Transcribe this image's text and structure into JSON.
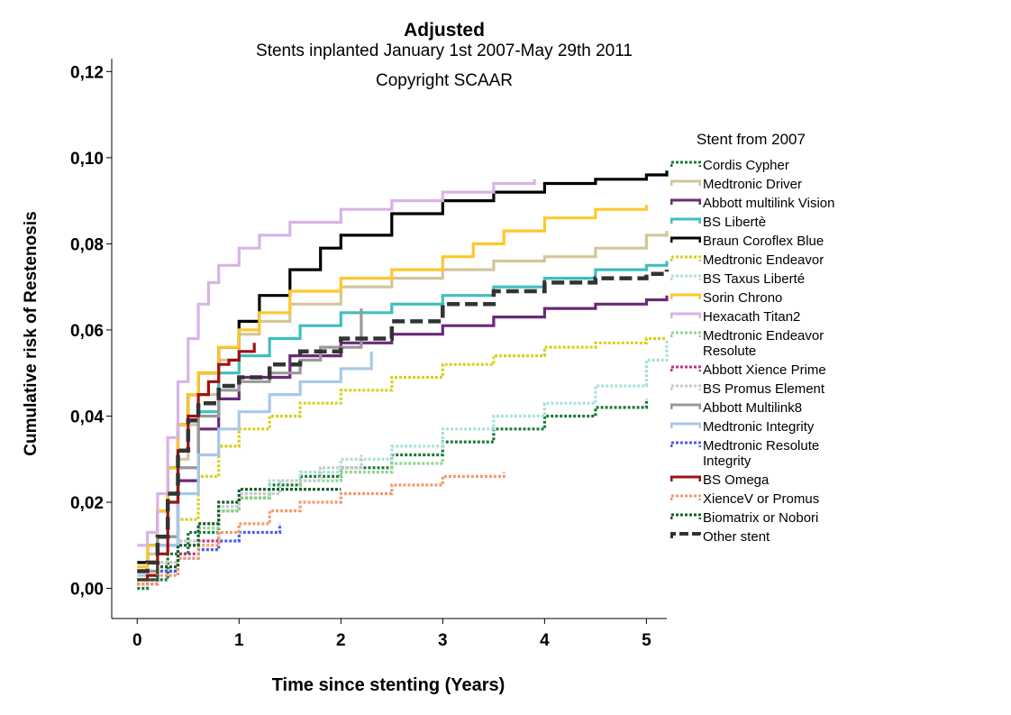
{
  "chart_data": {
    "type": "line",
    "title": "Adjusted",
    "subtitle": "Stents inplanted January 1st 2007-May 29th 2011",
    "annotation": "Copyright SCAAR",
    "xlabel": "Time since stenting (Years)",
    "ylabel": "Cumulative risk of Restenosis",
    "xlim": [
      -0.25,
      5.2
    ],
    "ylim": [
      -0.007,
      0.123
    ],
    "xticks": [
      "0",
      "1",
      "2",
      "3",
      "4",
      "5"
    ],
    "xtick_values": [
      0,
      1,
      2,
      3,
      4,
      5
    ],
    "yticks": [
      "0,00",
      "0,02",
      "0,04",
      "0,06",
      "0,08",
      "0,10",
      "0,12"
    ],
    "ytick_values": [
      0,
      0.02,
      0.04,
      0.06,
      0.08,
      0.1,
      0.12
    ],
    "grid": false,
    "legend_title": "Stent from 2007",
    "legend_position": "right",
    "series": [
      {
        "name": "Cordis Cypher",
        "color": "#1a7a3c",
        "dash": "dotted",
        "x": [
          0,
          0.1,
          0.3,
          0.5,
          0.8,
          1.0,
          1.3,
          1.6,
          2.0,
          2.5,
          3.0,
          3.5,
          4.0,
          4.5,
          5.0
        ],
        "y": [
          0,
          0.002,
          0.008,
          0.013,
          0.018,
          0.021,
          0.024,
          0.026,
          0.028,
          0.031,
          0.034,
          0.037,
          0.04,
          0.042,
          0.044
        ]
      },
      {
        "name": "Medtronic Driver",
        "color": "#d2c69a",
        "dash": "solid",
        "x": [
          0,
          0.1,
          0.2,
          0.3,
          0.4,
          0.5,
          0.6,
          0.8,
          1.0,
          1.2,
          1.5,
          2.0,
          2.5,
          3.0,
          3.5,
          4.0,
          4.5,
          5.0,
          5.2
        ],
        "y": [
          0.005,
          0.008,
          0.012,
          0.02,
          0.03,
          0.038,
          0.045,
          0.053,
          0.059,
          0.062,
          0.066,
          0.07,
          0.072,
          0.074,
          0.076,
          0.077,
          0.079,
          0.082,
          0.083
        ]
      },
      {
        "name": "Abbott multilink Vision",
        "color": "#6a2a78",
        "dash": "solid",
        "x": [
          0,
          0.2,
          0.4,
          0.6,
          0.8,
          1.0,
          1.5,
          2.0,
          2.5,
          3.0,
          3.5,
          4.0,
          4.5,
          5.0,
          5.2
        ],
        "y": [
          0.002,
          0.01,
          0.025,
          0.037,
          0.044,
          0.049,
          0.054,
          0.057,
          0.059,
          0.061,
          0.063,
          0.065,
          0.066,
          0.067,
          0.068
        ]
      },
      {
        "name": "BS Libertè",
        "color": "#3fbfbf",
        "dash": "solid",
        "x": [
          0,
          0.2,
          0.4,
          0.6,
          0.8,
          1.0,
          1.3,
          1.6,
          2.0,
          2.5,
          3.0,
          3.5,
          4.0,
          4.5,
          5.0,
          5.2
        ],
        "y": [
          0.004,
          0.012,
          0.028,
          0.041,
          0.05,
          0.054,
          0.058,
          0.061,
          0.064,
          0.066,
          0.068,
          0.07,
          0.072,
          0.074,
          0.075,
          0.076
        ]
      },
      {
        "name": "Braun Coroflex Blue",
        "color": "#000000",
        "dash": "solid",
        "x": [
          0,
          0.1,
          0.2,
          0.3,
          0.4,
          0.5,
          0.6,
          0.8,
          1.0,
          1.2,
          1.5,
          1.8,
          2.0,
          2.5,
          3.0,
          3.5,
          4.0,
          4.5,
          5.0,
          5.2
        ],
        "y": [
          0.006,
          0.01,
          0.018,
          0.028,
          0.038,
          0.045,
          0.05,
          0.056,
          0.062,
          0.068,
          0.074,
          0.079,
          0.082,
          0.087,
          0.09,
          0.092,
          0.094,
          0.095,
          0.096,
          0.097
        ]
      },
      {
        "name": "Medtronic Endeavor",
        "color": "#d6d01a",
        "dash": "dotted",
        "x": [
          0,
          0.2,
          0.4,
          0.6,
          0.8,
          1.0,
          1.3,
          1.6,
          2.0,
          2.5,
          3.0,
          3.5,
          4.0,
          4.5,
          5.0,
          5.2
        ],
        "y": [
          0.001,
          0.006,
          0.016,
          0.026,
          0.033,
          0.037,
          0.04,
          0.043,
          0.046,
          0.049,
          0.052,
          0.054,
          0.056,
          0.057,
          0.058,
          0.058
        ]
      },
      {
        "name": "BS Taxus Liberté",
        "color": "#a8e0dc",
        "dash": "dotted",
        "x": [
          0,
          0.2,
          0.4,
          0.6,
          0.8,
          1.0,
          1.3,
          1.6,
          2.0,
          2.5,
          3.0,
          3.5,
          4.0,
          4.5,
          5.0,
          5.2
        ],
        "y": [
          0.002,
          0.006,
          0.011,
          0.015,
          0.019,
          0.022,
          0.025,
          0.027,
          0.03,
          0.033,
          0.037,
          0.04,
          0.043,
          0.047,
          0.053,
          0.058
        ]
      },
      {
        "name": "Sorin Chrono",
        "color": "#ffc72c",
        "dash": "solid",
        "x": [
          0,
          0.1,
          0.2,
          0.3,
          0.4,
          0.5,
          0.6,
          0.8,
          1.0,
          1.2,
          1.5,
          2.0,
          2.5,
          3.0,
          3.3,
          3.6,
          4.0,
          4.5,
          5.0
        ],
        "y": [
          0.005,
          0.01,
          0.018,
          0.028,
          0.038,
          0.045,
          0.05,
          0.056,
          0.06,
          0.064,
          0.069,
          0.072,
          0.074,
          0.077,
          0.08,
          0.083,
          0.086,
          0.088,
          0.089
        ]
      },
      {
        "name": "Hexacath Titan2",
        "color": "#d9b3e6",
        "dash": "solid",
        "x": [
          0,
          0.1,
          0.2,
          0.3,
          0.4,
          0.5,
          0.6,
          0.7,
          0.8,
          1.0,
          1.2,
          1.5,
          2.0,
          2.5,
          3.0,
          3.5,
          3.9
        ],
        "y": [
          0.01,
          0.013,
          0.022,
          0.035,
          0.048,
          0.058,
          0.066,
          0.071,
          0.075,
          0.079,
          0.082,
          0.085,
          0.088,
          0.09,
          0.092,
          0.094,
          0.095
        ]
      },
      {
        "name": "Medtronic Endeavor Resolute",
        "color": "#8fd88f",
        "dash": "dotted",
        "x": [
          0,
          0.2,
          0.4,
          0.6,
          0.8,
          1.0,
          1.3,
          1.6,
          2.0,
          2.5,
          3.0
        ],
        "y": [
          0.002,
          0.005,
          0.01,
          0.014,
          0.018,
          0.021,
          0.023,
          0.025,
          0.027,
          0.029,
          0.03
        ]
      },
      {
        "name": "Abbott Xience Prime",
        "color": "#c0307f",
        "dash": "dotted",
        "x": [
          0,
          0.2,
          0.4,
          0.6,
          0.8
        ],
        "y": [
          0.001,
          0.004,
          0.008,
          0.011,
          0.013
        ]
      },
      {
        "name": "BS Promus Element",
        "color": "#c8c8c8",
        "dash": "dotted",
        "x": [
          0,
          0.2,
          0.4,
          0.6,
          0.8,
          1.0,
          1.4,
          1.8,
          2.2
        ],
        "y": [
          0.002,
          0.006,
          0.011,
          0.015,
          0.019,
          0.022,
          0.025,
          0.028,
          0.031
        ]
      },
      {
        "name": "Abbott Multilink8",
        "color": "#999999",
        "dash": "solid",
        "x": [
          0,
          0.2,
          0.4,
          0.6,
          0.8,
          1.0,
          1.3,
          1.6,
          1.8,
          2.0,
          2.2,
          2.2
        ],
        "y": [
          0.004,
          0.012,
          0.028,
          0.04,
          0.046,
          0.048,
          0.05,
          0.053,
          0.056,
          0.056,
          0.056,
          0.065
        ]
      },
      {
        "name": "Medtronic Integrity",
        "color": "#a8c8e8",
        "dash": "solid",
        "x": [
          0,
          0.2,
          0.4,
          0.6,
          0.8,
          1.0,
          1.3,
          1.6,
          2.0,
          2.3
        ],
        "y": [
          0.003,
          0.01,
          0.022,
          0.031,
          0.037,
          0.041,
          0.045,
          0.048,
          0.051,
          0.055
        ]
      },
      {
        "name": "Medtronic Resolute Integrity",
        "color": "#4a5ee8",
        "dash": "dotted",
        "x": [
          0,
          0.2,
          0.4,
          0.6,
          0.8,
          1.0,
          1.4
        ],
        "y": [
          0.002,
          0.004,
          0.007,
          0.009,
          0.011,
          0.013,
          0.015
        ]
      },
      {
        "name": "BS Omega",
        "color": "#a01010",
        "dash": "solid",
        "x": [
          0,
          0.1,
          0.2,
          0.3,
          0.4,
          0.5,
          0.6,
          0.7,
          0.8,
          0.9,
          1.0,
          1.15
        ],
        "y": [
          0.002,
          0.003,
          0.008,
          0.02,
          0.032,
          0.04,
          0.045,
          0.048,
          0.052,
          0.053,
          0.055,
          0.057
        ]
      },
      {
        "name": "XienceV or Promus",
        "color": "#f29a6b",
        "dash": "dotted",
        "x": [
          0,
          0.2,
          0.4,
          0.6,
          0.8,
          1.0,
          1.3,
          1.6,
          2.0,
          2.5,
          3.0,
          3.6
        ],
        "y": [
          0.001,
          0.003,
          0.007,
          0.01,
          0.013,
          0.015,
          0.018,
          0.02,
          0.022,
          0.024,
          0.026,
          0.027
        ]
      },
      {
        "name": "Biomatrix or Nobori",
        "color": "#145c2a",
        "dash": "dotted",
        "x": [
          0,
          0.2,
          0.4,
          0.6,
          0.8,
          1.0,
          1.3,
          1.6,
          2.0
        ],
        "y": [
          0.002,
          0.005,
          0.01,
          0.015,
          0.02,
          0.023,
          0.023,
          0.023,
          0.023
        ]
      },
      {
        "name": "Other stent",
        "color": "#333333",
        "dash": "dashed",
        "x": [
          0,
          0.1,
          0.2,
          0.3,
          0.4,
          0.5,
          0.6,
          0.8,
          1.0,
          1.3,
          1.6,
          2.0,
          2.5,
          3.0,
          3.5,
          4.0,
          4.5,
          5.0,
          5.2
        ],
        "y": [
          0.004,
          0.006,
          0.012,
          0.022,
          0.032,
          0.039,
          0.043,
          0.047,
          0.049,
          0.052,
          0.055,
          0.058,
          0.062,
          0.066,
          0.069,
          0.071,
          0.072,
          0.073,
          0.074
        ]
      }
    ]
  }
}
